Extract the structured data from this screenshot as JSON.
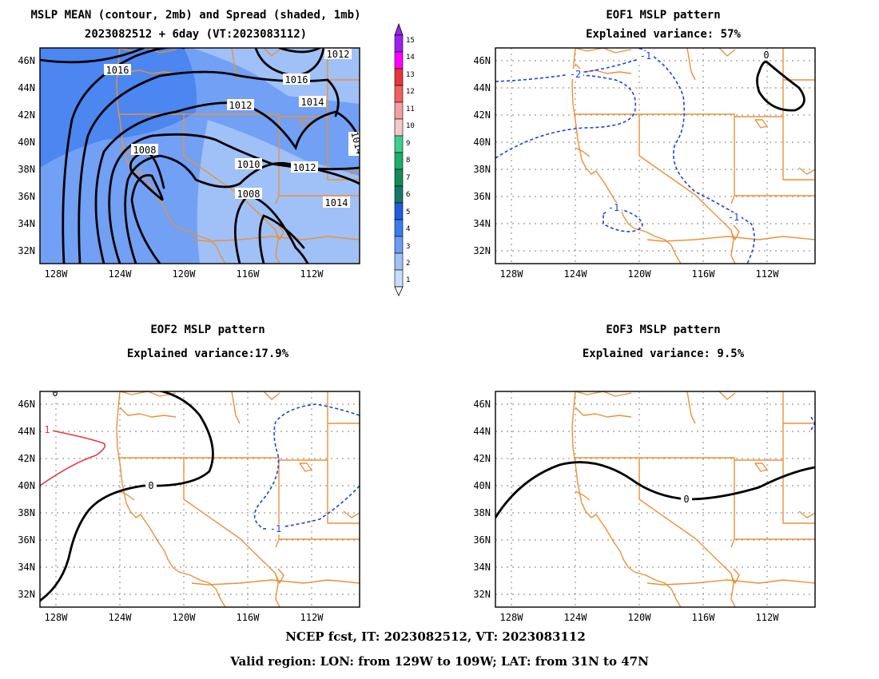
{
  "panels": {
    "mean": {
      "title_line1": "MSLP MEAN (contour, 2mb) and Spread (shaded, 1mb)",
      "title_line2": "2023082512 + 6day (VT:2023083112)",
      "contour_labels": [
        "1016",
        "1012",
        "1016",
        "1014",
        "1012",
        "1008",
        "1010",
        "1012",
        "1008",
        "1014",
        "1014"
      ]
    },
    "eof1": {
      "title_line1": "EOF1 MSLP pattern",
      "title_line2": "Explained variance: 57%",
      "contour_labels": [
        "-2",
        "-1",
        "-1",
        "-1",
        "0"
      ]
    },
    "eof2": {
      "title_line1": "EOF2 MSLP pattern",
      "title_line2": "Explained variance:17.9%",
      "contour_labels": [
        "0",
        "1",
        "-1",
        "0"
      ]
    },
    "eof3": {
      "title_line1": "EOF3 MSLP pattern",
      "title_line2": "Explained variance: 9.5%",
      "contour_labels": [
        "0"
      ]
    }
  },
  "axes": {
    "lat_labels": [
      "46N",
      "44N",
      "42N",
      "40N",
      "38N",
      "36N",
      "34N",
      "32N"
    ],
    "lon_labels": [
      "128W",
      "124W",
      "120W",
      "116W",
      "112W"
    ]
  },
  "colorbar": {
    "labels": [
      "15",
      "14",
      "13",
      "12",
      "11",
      "10",
      "9",
      "8",
      "7",
      "6",
      "5",
      "4",
      "3",
      "2",
      "1"
    ],
    "colors": [
      "#a020f0",
      "#ff00ff",
      "#e8343a",
      "#f06060",
      "#f4a0a0",
      "#f4c8c8",
      "#3cd08c",
      "#1fae6a",
      "#168a58",
      "#147868",
      "#1f5ee0",
      "#3a7cf0",
      "#6c9cf4",
      "#a0c0f8",
      "#c8dcff"
    ]
  },
  "shading": {
    "level1_color": "#a0c0f8",
    "level2_color": "#6c9cf4",
    "level3_color": "#4c86f0"
  },
  "footer": {
    "line1": "NCEP fcst, IT: 2023082512, VT: 2023083112",
    "line2": "Valid region: LON: from 129W to 109W; LAT: from 31N to 47N"
  },
  "colors": {
    "border_orange": "#e8923a",
    "negative_contour": "#1d3fe0",
    "positive_contour": "#e03c3c",
    "zero_contour": "#000000"
  }
}
